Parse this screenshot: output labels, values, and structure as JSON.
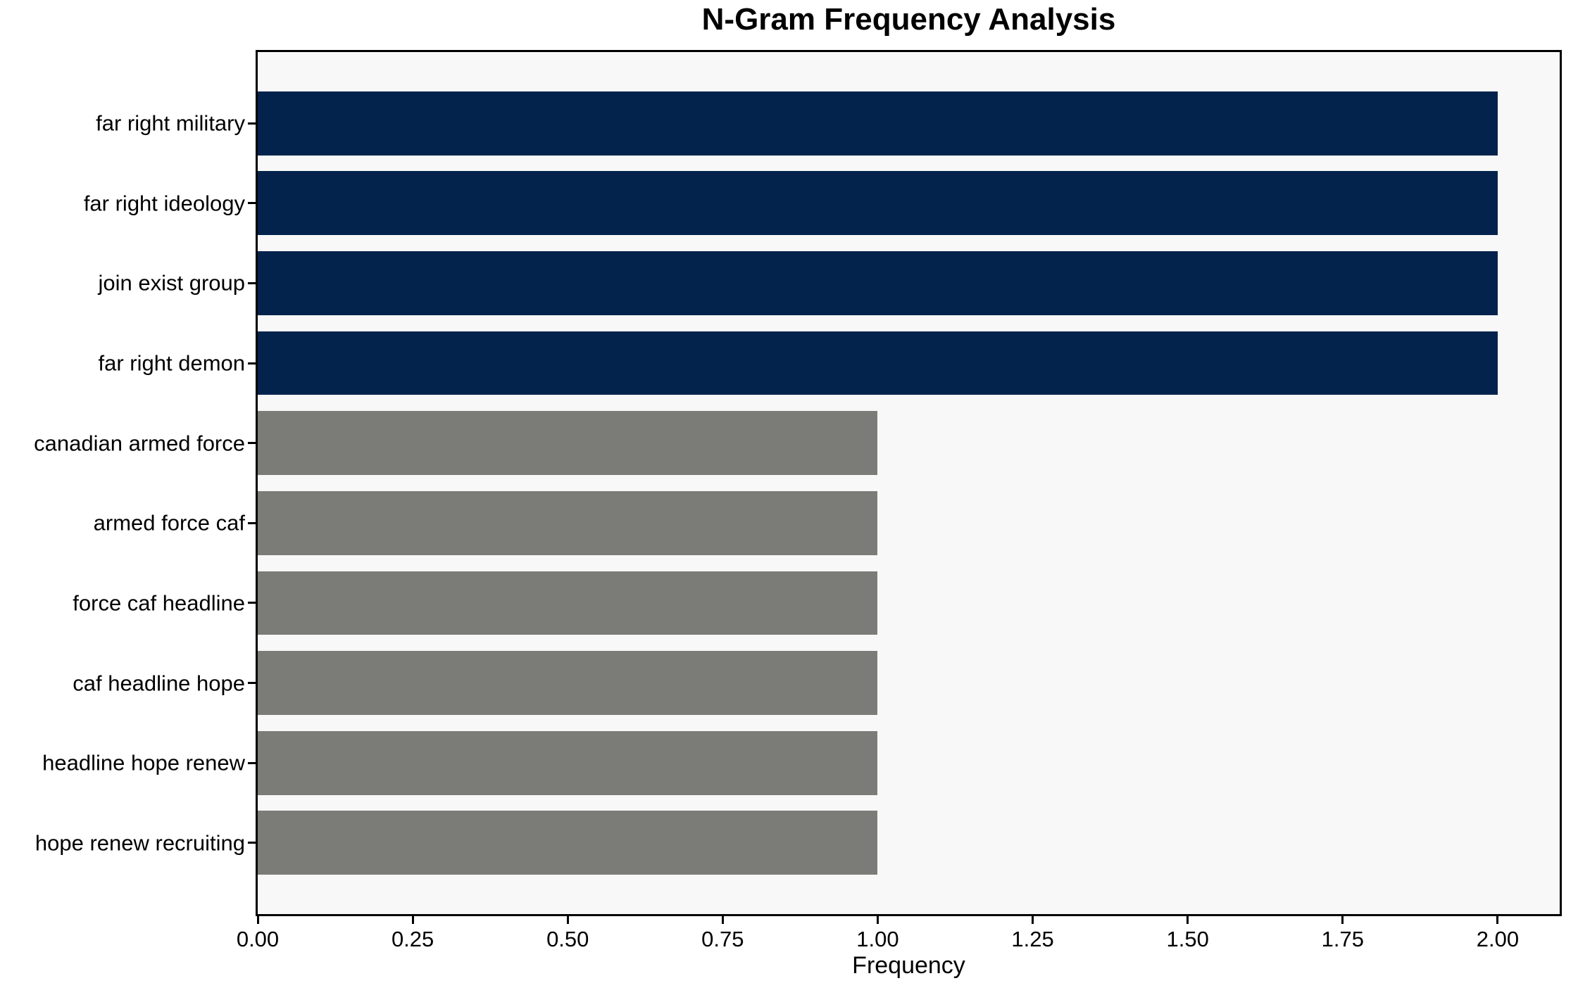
{
  "figure": {
    "background": "#ffffff",
    "title": "N-Gram Frequency Analysis"
  },
  "colors": {
    "navy_bar": "#03234d",
    "gray_bar": "#7b7b77",
    "plot_background": "#f8f8f8",
    "axis": "#000000",
    "text": "#000000"
  },
  "chart_data": {
    "type": "bar",
    "orientation": "horizontal",
    "title": "N-Gram Frequency Analysis",
    "xlabel": "Frequency",
    "ylabel": "",
    "categories": [
      "far right military",
      "far right ideology",
      "join exist group",
      "far right demon",
      "canadian armed force",
      "armed force caf",
      "force caf headline",
      "caf headline hope",
      "headline hope renew",
      "hope renew recruiting"
    ],
    "values": [
      2,
      2,
      2,
      2,
      1,
      1,
      1,
      1,
      1,
      1
    ],
    "bar_colors": [
      "#03234d",
      "#03234d",
      "#03234d",
      "#03234d",
      "#7b7b77",
      "#7b7b77",
      "#7b7b77",
      "#7b7b77",
      "#7b7b77",
      "#7b7b77"
    ],
    "xlim": [
      0,
      2.1
    ],
    "x_ticks": [
      0.0,
      0.25,
      0.5,
      0.75,
      1.0,
      1.25,
      1.5,
      1.75,
      2.0
    ],
    "x_tick_labels": [
      "0.00",
      "0.25",
      "0.50",
      "0.75",
      "1.00",
      "1.25",
      "1.50",
      "1.75",
      "2.00"
    ],
    "grid": false,
    "legend_position": "none",
    "plot_background": "#f8f8f8",
    "bar_height_fraction": 0.8,
    "y_margin_units": 0.89
  }
}
